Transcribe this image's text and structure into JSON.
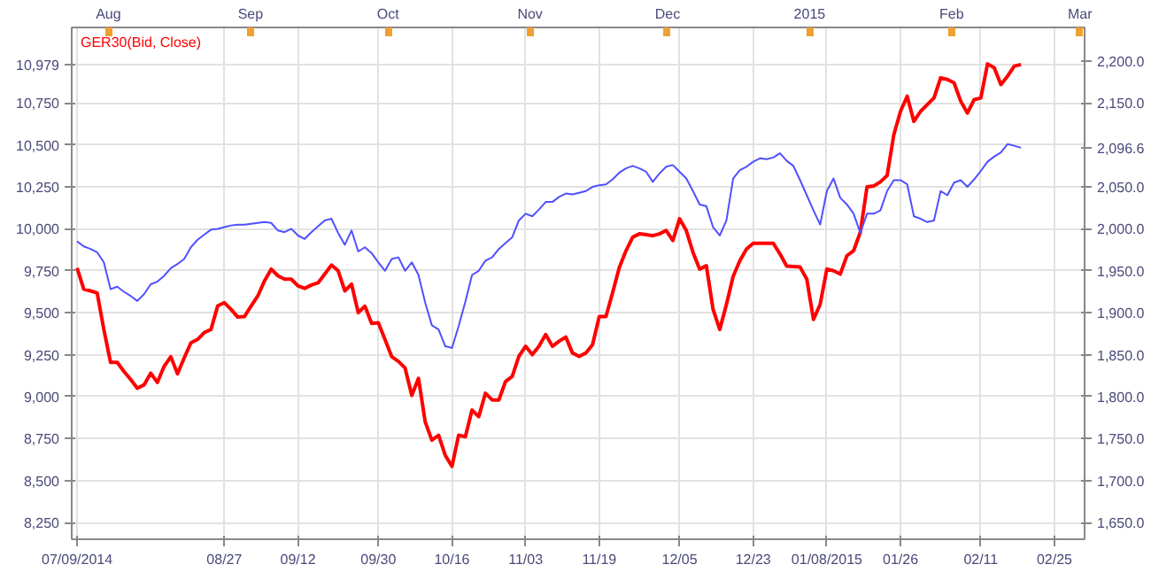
{
  "chart_data": {
    "type": "line",
    "categories": [
      "07/09/2014",
      null,
      null,
      null,
      null,
      null,
      null,
      null,
      null,
      null,
      null,
      null,
      null,
      null,
      null,
      null,
      null,
      null,
      null,
      null,
      null,
      null,
      "08/27",
      null,
      null,
      null,
      null,
      null,
      null,
      null,
      null,
      null,
      null,
      "09/12",
      null,
      null,
      null,
      null,
      null,
      null,
      null,
      null,
      null,
      null,
      null,
      "09/30",
      null,
      null,
      null,
      null,
      null,
      null,
      null,
      null,
      null,
      null,
      "10/16",
      null,
      null,
      null,
      null,
      null,
      null,
      null,
      null,
      null,
      null,
      "11/03",
      null,
      null,
      null,
      null,
      null,
      null,
      null,
      null,
      null,
      null,
      "11/19",
      null,
      null,
      null,
      null,
      null,
      null,
      null,
      null,
      null,
      null,
      null,
      "12/05",
      null,
      null,
      null,
      null,
      null,
      null,
      null,
      null,
      null,
      null,
      "12/23",
      null,
      null,
      null,
      null,
      null,
      null,
      null,
      null,
      null,
      null,
      "01/08/2015",
      null,
      null,
      null,
      null,
      null,
      null,
      null,
      null,
      null,
      null,
      "01/26",
      null,
      null,
      null,
      null,
      null,
      null,
      null,
      null,
      null,
      null,
      null,
      "02/11",
      null,
      null,
      null,
      null,
      null,
      null,
      null,
      null,
      null,
      null,
      "02/25",
      null,
      null,
      null,
      null
    ],
    "x2lim": [
      "2014-07-24",
      "2015-03-02"
    ],
    "x2ticks": [
      {
        "value": "2014-08-01",
        "label": "Aug"
      },
      {
        "value": "2014-09-01",
        "label": "Sep"
      },
      {
        "value": "2014-10-01",
        "label": "Oct"
      },
      {
        "value": "2014-11-01",
        "label": "Nov"
      },
      {
        "value": "2014-12-01",
        "label": "Dec"
      },
      {
        "value": "2015-01-01",
        "label": "2015"
      },
      {
        "value": "2015-02-01",
        "label": "Feb"
      },
      {
        "value": "2015-03-01",
        "label": "Mar"
      }
    ],
    "ylim": [
      8150,
      11200
    ],
    "yticks": [
      {
        "value": 8250,
        "label": "8,250"
      },
      {
        "value": 8500,
        "label": "8,500"
      },
      {
        "value": 8750,
        "label": "8,750"
      },
      {
        "value": 9000,
        "label": "9,000"
      },
      {
        "value": 9250,
        "label": "9,250"
      },
      {
        "value": 9500,
        "label": "9,500"
      },
      {
        "value": 9750,
        "label": "9,750"
      },
      {
        "value": 10000,
        "label": "10,000"
      },
      {
        "value": 10250,
        "label": "10,250"
      },
      {
        "value": 10500,
        "label": "10,500"
      },
      {
        "value": 10750,
        "label": "10,750"
      },
      {
        "value": 10979,
        "label": "10,979"
      }
    ],
    "y2lim": [
      1630,
      2240
    ],
    "y2ticks": [
      {
        "value": 1650,
        "label": "1,650.0"
      },
      {
        "value": 1700,
        "label": "1,700.0"
      },
      {
        "value": 1750,
        "label": "1,750.0"
      },
      {
        "value": 1800,
        "label": "1,800.0"
      },
      {
        "value": 1850,
        "label": "1,850.0"
      },
      {
        "value": 1900,
        "label": "1,900.0"
      },
      {
        "value": 1950,
        "label": "1,950.0"
      },
      {
        "value": 2000,
        "label": "2,000.0"
      },
      {
        "value": 2050,
        "label": "2,050.0"
      },
      {
        "value": 2096.6,
        "label": "2,096.6"
      },
      {
        "value": 2150,
        "label": "2,150.0"
      },
      {
        "value": 2200,
        "label": "2,200.0"
      }
    ],
    "grid": true,
    "series": [
      {
        "name": "GER30(Bid, Close)",
        "color": "#ff0000",
        "values": [
          9767,
          9640,
          9630,
          9618,
          9400,
          9204,
          9204,
          9150,
          9102,
          9050,
          9070,
          9140,
          9085,
          9180,
          9238,
          9136,
          9230,
          9320,
          9341,
          9382,
          9400,
          9540,
          9560,
          9520,
          9474,
          9477,
          9540,
          9600,
          9690,
          9760,
          9720,
          9700,
          9700,
          9660,
          9645,
          9665,
          9678,
          9730,
          9784,
          9750,
          9630,
          9670,
          9500,
          9539,
          9436,
          9440,
          9340,
          9238,
          9210,
          9170,
          9007,
          9109,
          8850,
          8740,
          8770,
          8650,
          8584,
          8770,
          8761,
          8920,
          8880,
          9020,
          8980,
          8980,
          9090,
          9120,
          9240,
          9300,
          9250,
          9300,
          9370,
          9300,
          9330,
          9355,
          9260,
          9240,
          9260,
          9310,
          9477,
          9477,
          9620,
          9770,
          9870,
          9950,
          9970,
          9965,
          9959,
          9970,
          9990,
          9930,
          10060,
          9990,
          9860,
          9760,
          9780,
          9520,
          9400,
          9550,
          9716,
          9810,
          9880,
          9914,
          9914,
          9914,
          9914,
          9850,
          9778,
          9775,
          9772,
          9700,
          9460,
          9550,
          9760,
          9750,
          9730,
          9840,
          9870,
          9980,
          10250,
          10255,
          10280,
          10317,
          10560,
          10700,
          10790,
          10640,
          10700,
          10740,
          10780,
          10900,
          10890,
          10870,
          10760,
          10690,
          10770,
          10780,
          10983,
          10960,
          10860,
          10910,
          10970,
          10979,
          null,
          null,
          null,
          null,
          null,
          null,
          null,
          null,
          null
        ]
      },
      {
        "color": "#5050ff",
        "axis": "y2",
        "values": [
          1985,
          1979,
          1976,
          1972,
          1960,
          1928,
          1931,
          1925,
          1920,
          1914,
          1922,
          1934,
          1937,
          1944,
          1953,
          1958,
          1964,
          1978,
          1987,
          1993,
          1999,
          2000,
          2002,
          2004,
          2005,
          2005,
          2006,
          2007,
          2008,
          2007,
          1998,
          1996,
          2000,
          1992,
          1988,
          1996,
          2003,
          2010,
          2012,
          1995,
          1981,
          1998,
          1973,
          1978,
          1971,
          1960,
          1950,
          1964,
          1966,
          1950,
          1960,
          1945,
          1912,
          1885,
          1880,
          1860,
          1858,
          1884,
          1913,
          1945,
          1950,
          1962,
          1966,
          1976,
          1983,
          1990,
          2010,
          2018,
          2015,
          2023,
          2032,
          2032,
          2038,
          2042,
          2041,
          2043,
          2045,
          2050,
          2052,
          2053,
          2059,
          2067,
          2072,
          2075,
          2072,
          2068,
          2056,
          2066,
          2074,
          2076,
          2068,
          2060,
          2045,
          2029,
          2027,
          2002,
          1992,
          2010,
          2060,
          2070,
          2074,
          2080,
          2084,
          2083,
          2085,
          2090,
          2081,
          2075,
          2058,
          2040,
          2022,
          2005,
          2045,
          2060,
          2037,
          2029,
          2018,
          1995,
          2018,
          2018,
          2022,
          2045,
          2058,
          2058,
          2053,
          2015,
          2012,
          2008,
          2010,
          2045,
          2040,
          2055,
          2058,
          2050,
          2059,
          2069,
          2080,
          2086,
          2091,
          2101,
          2099,
          2096.6,
          null,
          null,
          null,
          null,
          null,
          null,
          null,
          null,
          null
        ]
      }
    ]
  }
}
